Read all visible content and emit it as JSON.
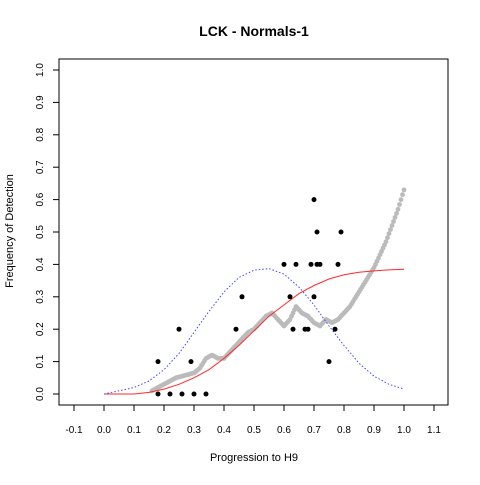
{
  "chart_data": {
    "type": "scatter",
    "title": "LCK - Normals-1",
    "xlabel": "Progression to H9",
    "ylabel": "Frequency of Detection",
    "xlim": [
      -0.1,
      1.1
    ],
    "ylim": [
      0.0,
      1.0
    ],
    "xticks": [
      "-0.1",
      "0.0",
      "0.1",
      "0.2",
      "0.3",
      "0.4",
      "0.5",
      "0.6",
      "0.7",
      "0.8",
      "0.9",
      "1.0",
      "1.1"
    ],
    "yticks": [
      "0.0",
      "0.1",
      "0.2",
      "0.3",
      "0.4",
      "0.5",
      "0.6",
      "0.7",
      "0.8",
      "0.9",
      "1.0"
    ],
    "grid": false,
    "legend": "none",
    "series": [
      {
        "kind": "points",
        "color": "#000000",
        "points": [
          [
            0.18,
            0.1
          ],
          [
            0.18,
            0.0
          ],
          [
            0.22,
            0.0
          ],
          [
            0.25,
            0.2
          ],
          [
            0.26,
            0.0
          ],
          [
            0.29,
            0.1
          ],
          [
            0.3,
            0.0
          ],
          [
            0.34,
            0.0
          ],
          [
            0.44,
            0.2
          ],
          [
            0.46,
            0.3
          ],
          [
            0.6,
            0.4
          ],
          [
            0.62,
            0.3
          ],
          [
            0.63,
            0.2
          ],
          [
            0.64,
            0.4
          ],
          [
            0.67,
            0.2
          ],
          [
            0.68,
            0.2
          ],
          [
            0.69,
            0.4
          ],
          [
            0.7,
            0.3
          ],
          [
            0.7,
            0.6
          ],
          [
            0.71,
            0.5
          ],
          [
            0.71,
            0.4
          ],
          [
            0.72,
            0.4
          ],
          [
            0.75,
            0.1
          ],
          [
            0.77,
            0.2
          ],
          [
            0.78,
            0.4
          ],
          [
            0.79,
            0.5
          ]
        ]
      },
      {
        "kind": "smoothed-points",
        "color": "#bbbbbb",
        "points": [
          [
            0.16,
            0.01
          ],
          [
            0.18,
            0.02
          ],
          [
            0.2,
            0.03
          ],
          [
            0.22,
            0.04
          ],
          [
            0.24,
            0.05
          ],
          [
            0.26,
            0.055
          ],
          [
            0.28,
            0.06
          ],
          [
            0.3,
            0.065
          ],
          [
            0.32,
            0.08
          ],
          [
            0.34,
            0.11
          ],
          [
            0.36,
            0.12
          ],
          [
            0.38,
            0.11
          ],
          [
            0.4,
            0.11
          ],
          [
            0.42,
            0.13
          ],
          [
            0.44,
            0.15
          ],
          [
            0.46,
            0.17
          ],
          [
            0.48,
            0.19
          ],
          [
            0.5,
            0.2
          ],
          [
            0.52,
            0.22
          ],
          [
            0.54,
            0.24
          ],
          [
            0.56,
            0.25
          ],
          [
            0.58,
            0.23
          ],
          [
            0.6,
            0.21
          ],
          [
            0.62,
            0.23
          ],
          [
            0.64,
            0.27
          ],
          [
            0.66,
            0.25
          ],
          [
            0.68,
            0.24
          ],
          [
            0.7,
            0.22
          ],
          [
            0.72,
            0.21
          ],
          [
            0.74,
            0.23
          ],
          [
            0.76,
            0.22
          ],
          [
            0.78,
            0.23
          ],
          [
            0.8,
            0.25
          ],
          [
            0.82,
            0.27
          ],
          [
            0.84,
            0.3
          ],
          [
            0.86,
            0.33
          ],
          [
            0.88,
            0.36
          ],
          [
            0.9,
            0.39
          ],
          [
            0.92,
            0.43
          ],
          [
            0.94,
            0.47
          ],
          [
            0.96,
            0.52
          ],
          [
            0.98,
            0.57
          ],
          [
            1.0,
            0.63
          ]
        ]
      },
      {
        "kind": "line",
        "color": "#ff2a2a",
        "dash": "solid",
        "points": [
          [
            0.0,
            0.0
          ],
          [
            0.1,
            0.0
          ],
          [
            0.15,
            0.005
          ],
          [
            0.2,
            0.015
          ],
          [
            0.25,
            0.03
          ],
          [
            0.3,
            0.05
          ],
          [
            0.35,
            0.075
          ],
          [
            0.4,
            0.11
          ],
          [
            0.45,
            0.15
          ],
          [
            0.5,
            0.195
          ],
          [
            0.55,
            0.24
          ],
          [
            0.6,
            0.275
          ],
          [
            0.65,
            0.31
          ],
          [
            0.7,
            0.335
          ],
          [
            0.75,
            0.355
          ],
          [
            0.8,
            0.368
          ],
          [
            0.85,
            0.376
          ],
          [
            0.9,
            0.38
          ],
          [
            0.95,
            0.383
          ],
          [
            1.0,
            0.385
          ]
        ]
      },
      {
        "kind": "line",
        "color": "#4444ff",
        "dash": "dotted",
        "points": [
          [
            0.0,
            0.0
          ],
          [
            0.05,
            0.01
          ],
          [
            0.1,
            0.02
          ],
          [
            0.15,
            0.04
          ],
          [
            0.2,
            0.075
          ],
          [
            0.25,
            0.125
          ],
          [
            0.3,
            0.19
          ],
          [
            0.35,
            0.255
          ],
          [
            0.4,
            0.315
          ],
          [
            0.45,
            0.36
          ],
          [
            0.5,
            0.382
          ],
          [
            0.55,
            0.387
          ],
          [
            0.6,
            0.37
          ],
          [
            0.65,
            0.33
          ],
          [
            0.7,
            0.275
          ],
          [
            0.75,
            0.21
          ],
          [
            0.8,
            0.15
          ],
          [
            0.85,
            0.095
          ],
          [
            0.9,
            0.055
          ],
          [
            0.95,
            0.03
          ],
          [
            1.0,
            0.015
          ]
        ]
      }
    ]
  }
}
